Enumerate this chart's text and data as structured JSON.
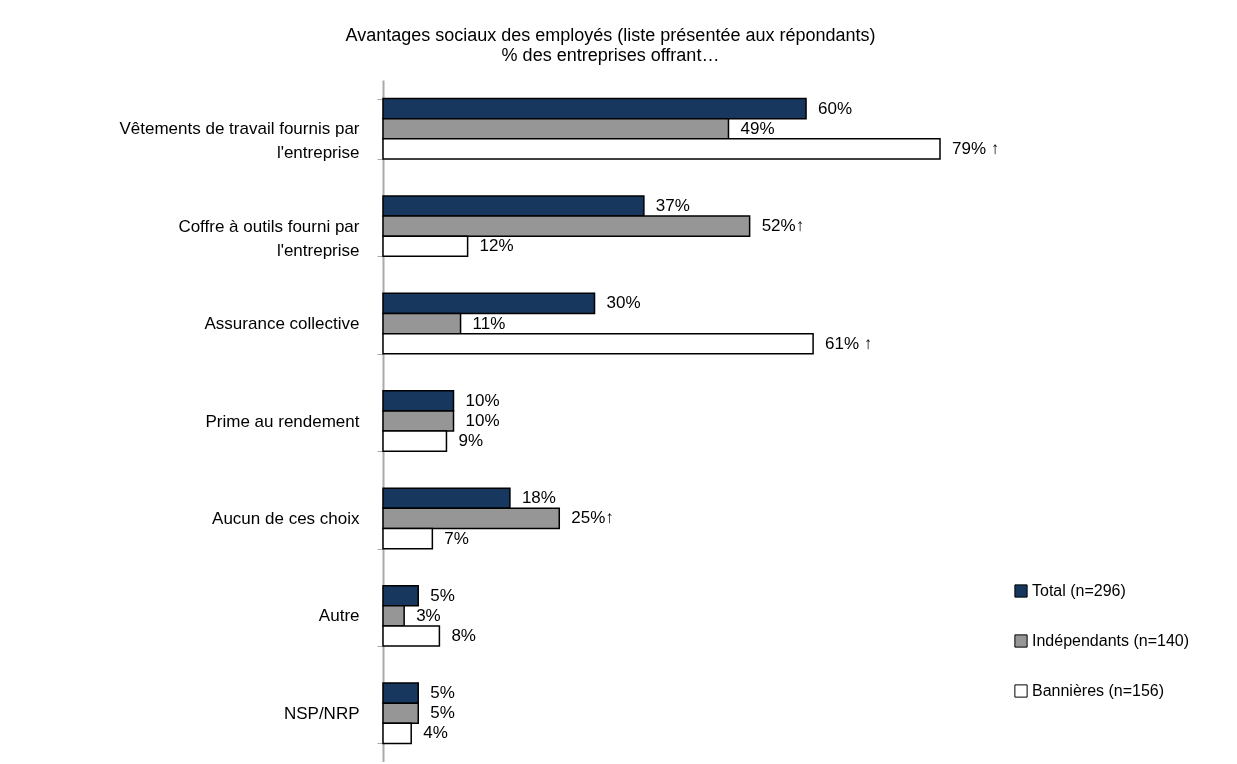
{
  "chart_data": {
    "type": "bar",
    "orientation": "horizontal",
    "title": "Avantages sociaux des employés (liste présentée aux répondants)",
    "subtitle": "% des entreprises offrant…",
    "categories": [
      "Vêtements de travail fournis par l'entreprise",
      "Coffre à outils fourni par l'entreprise",
      "Assurance collective",
      "Prime au rendement",
      "Aucun de ces choix",
      "Autre",
      "NSP/NRP"
    ],
    "series": [
      {
        "name": "Total (n=296)",
        "color": "#17375e",
        "values": [
          60,
          37,
          30,
          10,
          18,
          5,
          5
        ],
        "value_labels": [
          "60%",
          "37%",
          "30%",
          "10%",
          "18%",
          "5%",
          "5%"
        ]
      },
      {
        "name": "Indépendants (n=140)",
        "color": "#969696",
        "values": [
          49,
          52,
          11,
          10,
          25,
          3,
          5
        ],
        "value_labels": [
          "49%",
          "52%↑",
          "11%",
          "10%",
          "25%↑",
          "3%",
          "5%"
        ]
      },
      {
        "name": "Bannières (n=156)",
        "color": "#ffffff",
        "values": [
          79,
          12,
          61,
          9,
          7,
          8,
          4
        ],
        "value_labels": [
          "79% ↑",
          "12%",
          "61% ↑",
          "9%",
          "7%",
          "8%",
          "4%"
        ]
      }
    ],
    "tick_labels": "y",
    "legend": "bottom right"
  }
}
